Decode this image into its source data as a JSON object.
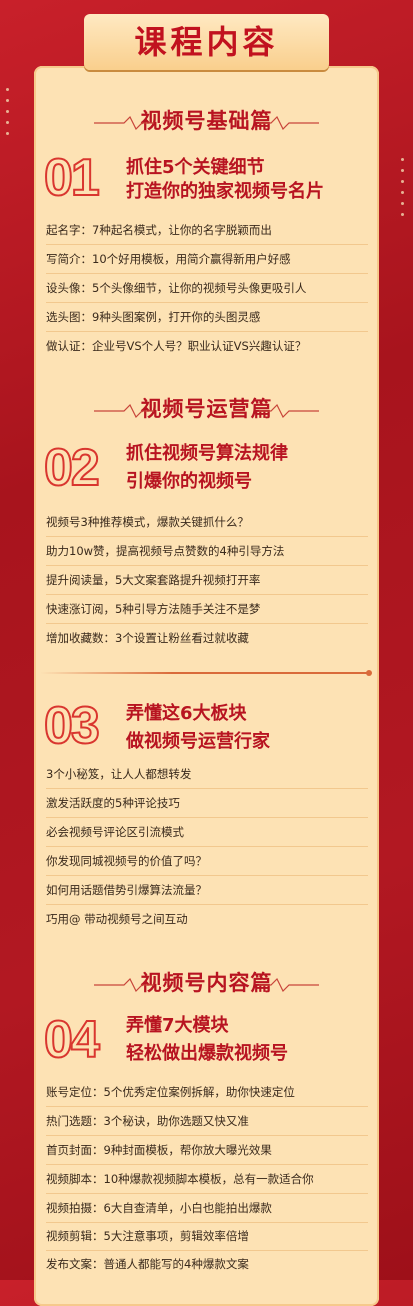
{
  "title": "课程内容",
  "sections": [
    {
      "header": "视频号基础篇",
      "num": "01",
      "sub": [
        "抓住5个关键细节",
        "打造你的独家视频号名片"
      ],
      "items": [
        "起名字：7种起名模式，让你的名字脱颖而出",
        "写简介：10个好用模板，用简介赢得新用户好感",
        "设头像：5个头像细节，让你的视频号头像更吸引人",
        "选头图：9种头图案例，打开你的头图灵感",
        "做认证：企业号VS个人号？职业认证VS兴趣认证？"
      ]
    },
    {
      "header": "视频号运营篇",
      "num": "02",
      "sub": [
        "抓住视频号算法规律",
        "引爆你的视频号"
      ],
      "items": [
        "视频号3种推荐模式，爆款关键抓什么？",
        "助力10w赞，提高视频号点赞数的4种引导方法",
        "提升阅读量，5大文案套路提升视频打开率",
        "快速涨订阅，5种引导方法随手关注不是梦",
        "增加收藏数：3个设置让粉丝看过就收藏"
      ]
    },
    {
      "header": "",
      "num": "03",
      "sub": [
        "弄懂这6大板块",
        "做视频号运营行家"
      ],
      "items": [
        "3个小秘笈，让人人都想转发",
        "激发活跃度的5种评论技巧",
        "必会视频号评论区引流模式",
        "你发现同城视频号的价值了吗？",
        "如何用话题借势引爆算法流量？",
        "巧用@ 带动视频号之间互动"
      ]
    },
    {
      "header": "视频号内容篇",
      "num": "04",
      "sub": [
        "弄懂7大模块",
        "轻松做出爆款视频号"
      ],
      "items": [
        "账号定位：5个优秀定位案例拆解，助你快速定位",
        "热门选题：3个秘诀，助你选题又快又准",
        "首页封面：9种封面模板，帮你放大曝光效果",
        "视频脚本：10种爆款视频脚本模板，总有一款适合你",
        "视频拍摄：6大自查清单，小白也能拍出爆款",
        "视频剪辑：5大注意事项，剪辑效率倍增",
        "发布文案：普通人都能写的4种爆款文案"
      ]
    }
  ]
}
